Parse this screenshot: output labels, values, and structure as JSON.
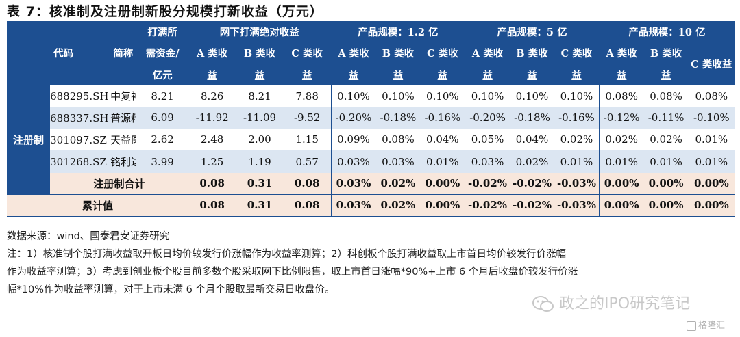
{
  "title": "表 7：核准制及注册制新股分规模打新收益（万元）",
  "header": {
    "code": "代码",
    "name": "简称",
    "fund_l1": "打满所",
    "fund_l2": "需资金/",
    "fund_l3": "亿元",
    "group_abs": "网下打满绝对收益",
    "group_12": "产品规模：1.2 亿",
    "group_5": "产品规模：5 亿",
    "group_10": "产品规模：10 亿",
    "a_top": "A 类收",
    "b_top": "B 类收",
    "c_top": "C 类收",
    "bottom": "益",
    "c_full": "C 类收益"
  },
  "side_label": "注册制",
  "rows": [
    {
      "code": "688295.SH",
      "name": "中复神鹰",
      "fund": "8.21",
      "abs": [
        "8.26",
        "8.21",
        "7.88"
      ],
      "s12": [
        "0.10%",
        "0.10%",
        "0.10%"
      ],
      "s5": [
        "0.10%",
        "0.10%",
        "0.10%"
      ],
      "s10": [
        "0.08%",
        "0.08%",
        "0.08%"
      ]
    },
    {
      "code": "688337.SH",
      "name": "普源精电-U",
      "fund": "6.09",
      "abs": [
        "-11.92",
        "-11.09",
        "-9.52"
      ],
      "s12": [
        "-0.20%",
        "-0.18%",
        "-0.16%"
      ],
      "s5": [
        "-0.20%",
        "-0.18%",
        "-0.16%"
      ],
      "s10": [
        "-0.12%",
        "-0.11%",
        "-0.10%"
      ]
    },
    {
      "code": "301097.SZ",
      "name": "天益医疗",
      "fund": "2.62",
      "abs": [
        "2.48",
        "2.00",
        "1.15"
      ],
      "s12": [
        "0.09%",
        "0.08%",
        "0.04%"
      ],
      "s5": [
        "0.05%",
        "0.04%",
        "0.02%"
      ],
      "s10": [
        "0.02%",
        "0.02%",
        "0.01%"
      ]
    },
    {
      "code": "301268.SZ",
      "name": "铭利达",
      "fund": "3.99",
      "abs": [
        "1.25",
        "1.19",
        "0.57"
      ],
      "s12": [
        "0.03%",
        "0.03%",
        "0.01%"
      ],
      "s5": [
        "0.03%",
        "0.02%",
        "0.01%"
      ],
      "s10": [
        "0.01%",
        "0.01%",
        "0.01%"
      ]
    }
  ],
  "subtotal": {
    "label": "注册制合计",
    "abs": [
      "0.08",
      "0.31",
      "0.08"
    ],
    "s12": [
      "0.03%",
      "0.02%",
      "0.00%"
    ],
    "s5": [
      "-0.02%",
      "-0.02%",
      "-0.03%"
    ],
    "s10": [
      "0.00%",
      "0.00%",
      "0.00%"
    ]
  },
  "total": {
    "label": "累计值",
    "abs": [
      "0.08",
      "0.31",
      "0.08"
    ],
    "s12": [
      "0.03%",
      "0.02%",
      "0.00%"
    ],
    "s5": [
      "-0.02%",
      "-0.02%",
      "-0.03%"
    ],
    "s10": [
      "0.00%",
      "0.00%",
      "0.00%"
    ]
  },
  "notes": {
    "source": "数据来源：wind、国泰君安证券研究",
    "line1": "注：1）核准制个股打满收益取开板日均价较发行价涨幅作为收益率测算；2）科创板个股打满收益取上市首日均价较发行价涨幅",
    "line2": "作为收益率测算；3）考虑到创业板个股目前多数个股采取网下比例限售，取上市首日涨幅*90%+上市 6 个月后收盘价较发行价涨",
    "line3": "幅*10%作为收益率测算，对于上市未满 6 个月个股取最新交易日收盘价。"
  },
  "watermark": "政之的IPO研究笔记",
  "logo2": "格隆汇",
  "colors": {
    "header_bg": "#1d4f91",
    "row_blue": "#dce6f2",
    "row_pink": "#f8e7dc"
  }
}
